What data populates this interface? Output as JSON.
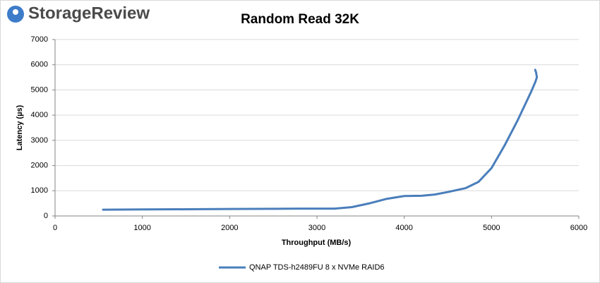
{
  "logo": "StorageReview",
  "chart_data": {
    "type": "line",
    "title": "Random Read 32K",
    "x_label": "Throughput (MB/s)",
    "y_label": "Latency (µs)",
    "x": [
      550,
      1000,
      1500,
      2000,
      2500,
      2800,
      3200,
      3400,
      3600,
      3800,
      4000,
      4200,
      4350,
      4500,
      4700,
      4850,
      5000,
      5150,
      5300,
      5450,
      5500,
      5520,
      5510,
      5500
    ],
    "series": [
      {
        "name": "QNAP TDS-h2489FU 8 x NVMe RAID6",
        "color": "#4a7ebb",
        "values": [
          250,
          260,
          265,
          275,
          285,
          290,
          290,
          350,
          500,
          680,
          790,
          800,
          850,
          950,
          1100,
          1350,
          1900,
          2800,
          3800,
          4900,
          5300,
          5500,
          5700,
          5800
        ]
      }
    ],
    "xlim": [
      0,
      6000
    ],
    "xticks": [
      0,
      1000,
      2000,
      3000,
      4000,
      5000,
      6000
    ],
    "ylim": [
      0,
      7000
    ],
    "yticks": [
      0,
      1000,
      2000,
      3000,
      4000,
      5000,
      6000,
      7000
    ],
    "grid": true
  }
}
